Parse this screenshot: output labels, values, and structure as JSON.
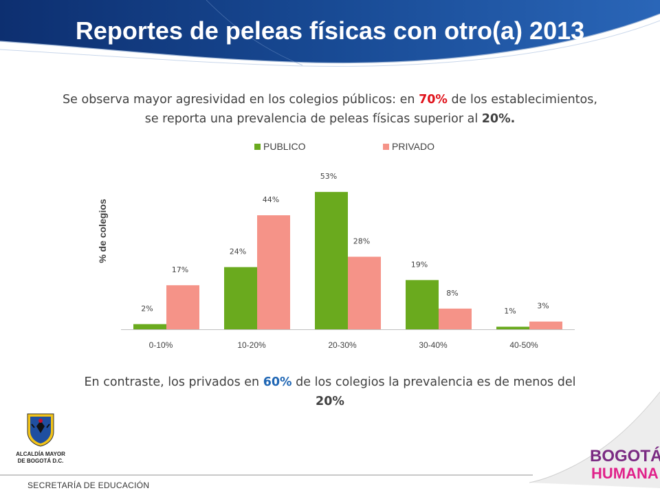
{
  "header": {
    "title": "Reportes de peleas físicas con otro(a) 2013"
  },
  "intro": {
    "part1": "Se observa mayor agresividad en los colegios públicos: en ",
    "highlight1": "70%",
    "part2": " de los establecimientos, se reporta una prevalencia de peleas físicas superior al ",
    "highlight2": "20%.",
    "accent_color": "#e0121b"
  },
  "outro": {
    "part1": "En contraste, los privados en ",
    "highlight1": "60%",
    "part2": " de los colegios la prevalencia es de menos del ",
    "highlight2": "20%",
    "accent_color": "#1f66b4"
  },
  "chart_data": {
    "type": "bar",
    "title": "",
    "xlabel": "",
    "ylabel": "% de colegios",
    "categories": [
      "0-10%",
      "10-20%",
      "20-30%",
      "30-40%",
      "40-50%"
    ],
    "series": [
      {
        "name": "PUBLICO",
        "color": "#6aaa1e",
        "values": [
          2,
          24,
          53,
          19,
          1
        ]
      },
      {
        "name": "PRIVADO",
        "color": "#f59388",
        "values": [
          17,
          44,
          28,
          8,
          3
        ]
      }
    ],
    "value_suffix": "%",
    "ylim": [
      0,
      55
    ],
    "grid": false,
    "legend": "top-center"
  },
  "logo_left": {
    "icon": "coat-of-arms-icon",
    "caption_line1": "ALCALDÍA MAYOR",
    "caption_line2": "DE BOGOTÁ D.C."
  },
  "footer": {
    "text": "SECRETARÍA DE EDUCACIÓN"
  },
  "brand": {
    "line1": "BOGOTÁ",
    "line2": "HUMANA"
  }
}
